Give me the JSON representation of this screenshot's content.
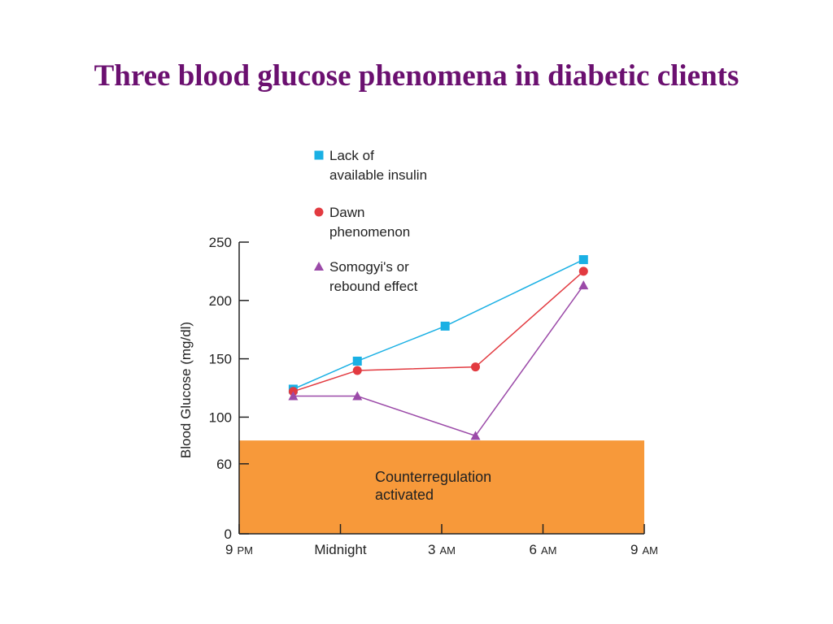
{
  "slide": {
    "title": "Three blood glucose phenomena in diabetic clients"
  },
  "chart_data": {
    "type": "line",
    "ylabel": "Blood Glucose (mg/dl)",
    "ylim": [
      0,
      250
    ],
    "yticks": [
      0,
      60,
      100,
      150,
      200,
      250
    ],
    "xlim": [
      0,
      12
    ],
    "xticks": [
      {
        "x": 0,
        "main": "9",
        "suffix": "PM"
      },
      {
        "x": 3,
        "main": "Midnight",
        "suffix": ""
      },
      {
        "x": 6,
        "main": "3",
        "suffix": "AM"
      },
      {
        "x": 9,
        "main": "6",
        "suffix": "AM"
      },
      {
        "x": 12,
        "main": "9",
        "suffix": "AM"
      }
    ],
    "band": {
      "y_from": 0,
      "y_to": 80,
      "label_line1": "Counterregulation",
      "label_line2": "activated",
      "color": "#f7993a"
    },
    "series": [
      {
        "name_line1": "Lack of",
        "name_line2": "available insulin",
        "marker": "square",
        "color": "#1ab0e4",
        "x": [
          1.6,
          3.5,
          6.1,
          10.2
        ],
        "y": [
          124,
          148,
          178,
          235
        ]
      },
      {
        "name_line1": "Dawn",
        "name_line2": "phenomenon",
        "marker": "circle",
        "color": "#e23a40",
        "x": [
          1.6,
          3.5,
          7.0,
          10.2
        ],
        "y": [
          122,
          140,
          143,
          225
        ]
      },
      {
        "name_line1": "Somogyi's or",
        "name_line2": "rebound effect",
        "marker": "triangle",
        "color": "#9b4aa8",
        "x": [
          1.6,
          3.5,
          7.0,
          10.2
        ],
        "y": [
          118,
          118,
          84,
          213
        ]
      }
    ]
  }
}
